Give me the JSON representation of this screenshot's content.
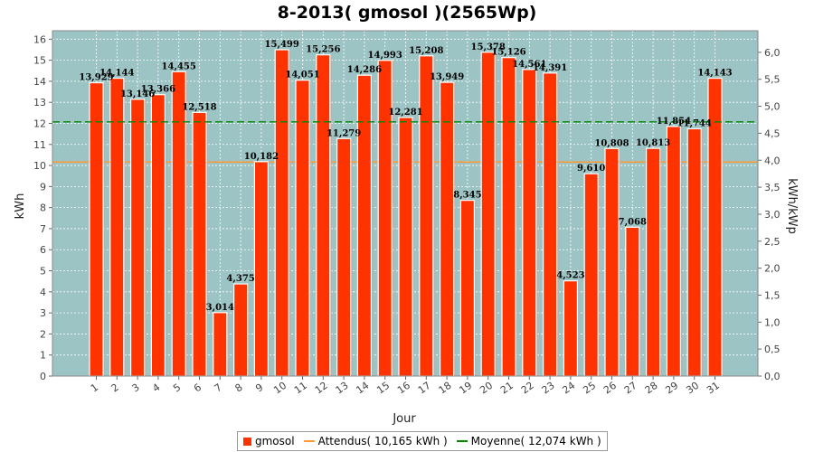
{
  "chart_data": {
    "type": "bar",
    "title": "8-2013( gmosol )(2565Wp)",
    "xlabel": "Jour",
    "ylabel": "kWh",
    "y2label": "kWh/kWp",
    "ylim": [
      0,
      16.4
    ],
    "y2lim": [
      0,
      6.4
    ],
    "yticks": [
      "0",
      "1",
      "2",
      "3",
      "4",
      "5",
      "6",
      "7",
      "8",
      "9",
      "10",
      "11",
      "12",
      "13",
      "14",
      "15",
      "16"
    ],
    "y2ticks": [
      "0,0",
      "0,5",
      "1,0",
      "1,5",
      "2,0",
      "2,5",
      "3,0",
      "3,5",
      "4,0",
      "4,5",
      "5,0",
      "5,5",
      "6,0"
    ],
    "categories": [
      "1",
      "2",
      "3",
      "4",
      "5",
      "6",
      "7",
      "8",
      "9",
      "10",
      "11",
      "12",
      "13",
      "14",
      "15",
      "16",
      "17",
      "18",
      "19",
      "20",
      "21",
      "22",
      "23",
      "24",
      "25",
      "26",
      "27",
      "28",
      "29",
      "30",
      "31"
    ],
    "series": [
      {
        "name": "gmosol",
        "color": "#ff3300",
        "values": [
          13.929,
          14.144,
          13.146,
          13.366,
          14.455,
          12.518,
          3.014,
          4.375,
          10.182,
          15.499,
          14.051,
          15.256,
          11.279,
          14.286,
          14.993,
          12.281,
          15.208,
          13.949,
          8.345,
          15.378,
          15.126,
          14.561,
          14.391,
          4.523,
          9.61,
          10.808,
          7.068,
          10.813,
          11.854,
          11.744,
          14.143
        ],
        "labels": [
          "13,929",
          "14,144",
          "13,146",
          "13,366",
          "14,455",
          "12,518",
          "3,014",
          "4,375",
          "10,182",
          "15,499",
          "14,051",
          "15,256",
          "11,279",
          "14,286",
          "14,993",
          "12,281",
          "15,208",
          "13,949",
          "8,345",
          "15,378",
          "15,126",
          "14,561",
          "14,391",
          "4,523",
          "9,610",
          "10,808",
          "7,068",
          "10,813",
          "11,854",
          "11,744",
          "14,143"
        ]
      }
    ],
    "expected": {
      "label": "Attendus( 10,165 kWh )",
      "value": 10.165,
      "color": "#ff9933"
    },
    "average": {
      "label": "Moyenne( 12,074 kWh )",
      "value": 12.074,
      "color": "#008800"
    },
    "plot_background": "#9dc4c4",
    "grid": true,
    "legend_position": "bottom"
  }
}
